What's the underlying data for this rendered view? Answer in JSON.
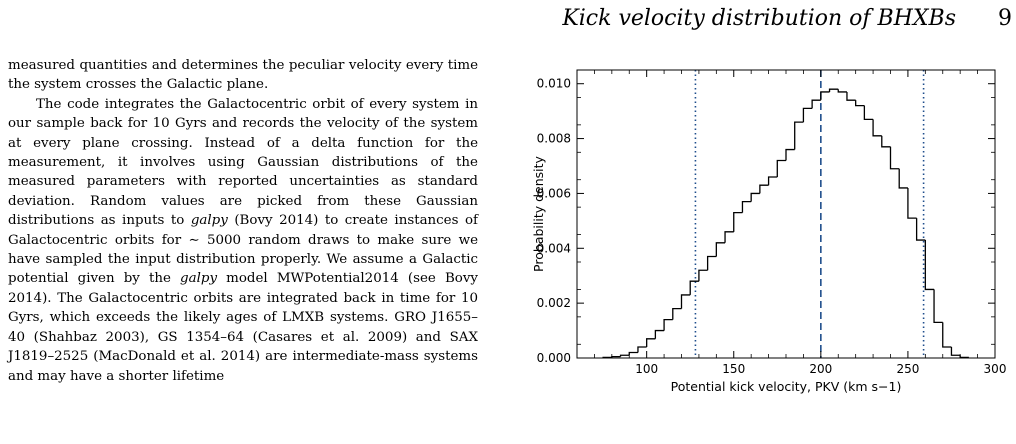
{
  "header": {
    "running_title": "Kick velocity distribution of BHXBs",
    "page_number": "9"
  },
  "body": {
    "paragraphs": [
      {
        "id": "p1",
        "segments": [
          {
            "text": "measured quantities and determines the peculiar velocity every time the system crosses the Galactic plane."
          }
        ]
      },
      {
        "id": "p2",
        "segments": [
          {
            "text": "The code integrates the Galactocentric orbit of every system in our sample back for 10 Gyrs and records the velocity of the system at every plane crossing. Instead of a delta function for the measurement, it involves using Gaussian distributions of the measured parameters with reported uncertainties as standard deviation. Random values are picked from these Gaussian distributions as inputs to "
          },
          {
            "text": "galpy",
            "style": "italic"
          },
          {
            "text": " (Bovy 2014) to create instances of Galactocentric orbits for ∼ 5000 random draws to make sure we have sampled the input distribution properly. We assume a Galactic potential given by the "
          },
          {
            "text": "galpy",
            "style": "italic"
          },
          {
            "text": " model MWPotential2014 (see  Bovy 2014). The Galactocentric orbits are integrated back in time for 10 Gyrs, which exceeds the likely ages of LMXB systems. GRO J1655–40 (Shahbaz 2003), GS 1354–64 (Casares et al. 2009) and SAX J1819–2525 (MacDonald et al. 2014) are intermediate-mass systems and may have a shorter lifetime"
          }
        ]
      }
    ]
  },
  "chart_data": {
    "type": "histogram",
    "xlabel": "Potential kick velocity, PKV (km s−1)",
    "ylabel": "Probability density",
    "xlim": [
      60,
      300
    ],
    "ylim": [
      0,
      0.0105
    ],
    "xticks": [
      100,
      150,
      200,
      250,
      300
    ],
    "xtick_labels": [
      "100",
      "150",
      "200",
      "250",
      "300"
    ],
    "yticks": [
      0,
      0.002,
      0.004,
      0.006,
      0.008,
      0.01
    ],
    "ytick_labels": [
      "0.000",
      "0.002",
      "0.004",
      "0.006",
      "0.008",
      "0.010"
    ],
    "step_color": "#000000",
    "vline_color": "#1f4e8c",
    "bins": [
      {
        "x0": 75,
        "x1": 80,
        "y": 2e-05
      },
      {
        "x0": 80,
        "x1": 85,
        "y": 5e-05
      },
      {
        "x0": 85,
        "x1": 90,
        "y": 0.0001
      },
      {
        "x0": 90,
        "x1": 95,
        "y": 0.0002
      },
      {
        "x0": 95,
        "x1": 100,
        "y": 0.0004
      },
      {
        "x0": 100,
        "x1": 105,
        "y": 0.0007
      },
      {
        "x0": 105,
        "x1": 110,
        "y": 0.001
      },
      {
        "x0": 110,
        "x1": 115,
        "y": 0.0014
      },
      {
        "x0": 115,
        "x1": 120,
        "y": 0.0018
      },
      {
        "x0": 120,
        "x1": 125,
        "y": 0.0023
      },
      {
        "x0": 125,
        "x1": 130,
        "y": 0.0028
      },
      {
        "x0": 130,
        "x1": 135,
        "y": 0.0032
      },
      {
        "x0": 135,
        "x1": 140,
        "y": 0.0037
      },
      {
        "x0": 140,
        "x1": 145,
        "y": 0.0042
      },
      {
        "x0": 145,
        "x1": 150,
        "y": 0.0046
      },
      {
        "x0": 150,
        "x1": 155,
        "y": 0.0053
      },
      {
        "x0": 155,
        "x1": 160,
        "y": 0.0057
      },
      {
        "x0": 160,
        "x1": 165,
        "y": 0.006
      },
      {
        "x0": 165,
        "x1": 170,
        "y": 0.0063
      },
      {
        "x0": 170,
        "x1": 175,
        "y": 0.0066
      },
      {
        "x0": 175,
        "x1": 180,
        "y": 0.0072
      },
      {
        "x0": 180,
        "x1": 185,
        "y": 0.0076
      },
      {
        "x0": 185,
        "x1": 190,
        "y": 0.0086
      },
      {
        "x0": 190,
        "x1": 195,
        "y": 0.0091
      },
      {
        "x0": 195,
        "x1": 200,
        "y": 0.0094
      },
      {
        "x0": 200,
        "x1": 205,
        "y": 0.0097
      },
      {
        "x0": 205,
        "x1": 210,
        "y": 0.0098
      },
      {
        "x0": 210,
        "x1": 215,
        "y": 0.0097
      },
      {
        "x0": 215,
        "x1": 220,
        "y": 0.0094
      },
      {
        "x0": 220,
        "x1": 225,
        "y": 0.0092
      },
      {
        "x0": 225,
        "x1": 230,
        "y": 0.0087
      },
      {
        "x0": 230,
        "x1": 235,
        "y": 0.0081
      },
      {
        "x0": 235,
        "x1": 240,
        "y": 0.0077
      },
      {
        "x0": 240,
        "x1": 245,
        "y": 0.0069
      },
      {
        "x0": 245,
        "x1": 250,
        "y": 0.0062
      },
      {
        "x0": 250,
        "x1": 255,
        "y": 0.0051
      },
      {
        "x0": 255,
        "x1": 260,
        "y": 0.0043
      },
      {
        "x0": 260,
        "x1": 265,
        "y": 0.0025
      },
      {
        "x0": 265,
        "x1": 270,
        "y": 0.0013
      },
      {
        "x0": 270,
        "x1": 275,
        "y": 0.0004
      },
      {
        "x0": 275,
        "x1": 280,
        "y": 0.0001
      },
      {
        "x0": 280,
        "x1": 285,
        "y": 2e-05
      }
    ],
    "vlines": [
      {
        "x": 128,
        "style": "dotted"
      },
      {
        "x": 200,
        "style": "dashed"
      },
      {
        "x": 259,
        "style": "dotted"
      }
    ]
  }
}
